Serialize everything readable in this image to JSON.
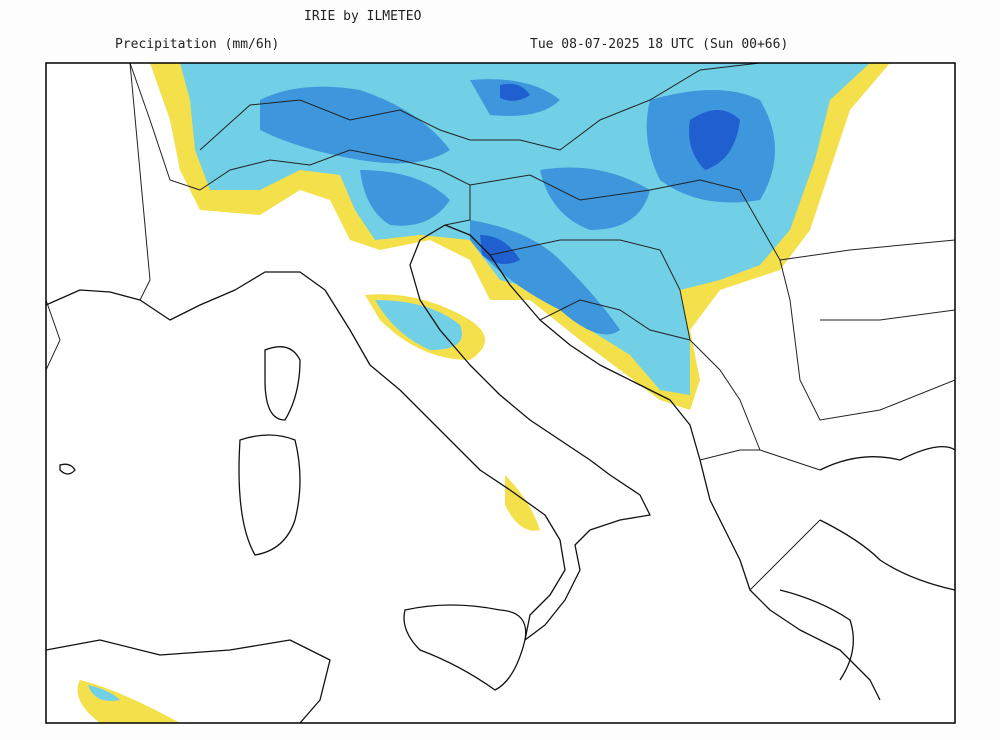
{
  "header": {
    "title": "IRIE by ILMETEO",
    "field": "Precipitation (mm/6h)",
    "valid_time": "Tue 08-07-2025 18 UTC (Sun 00+66)"
  }
}
